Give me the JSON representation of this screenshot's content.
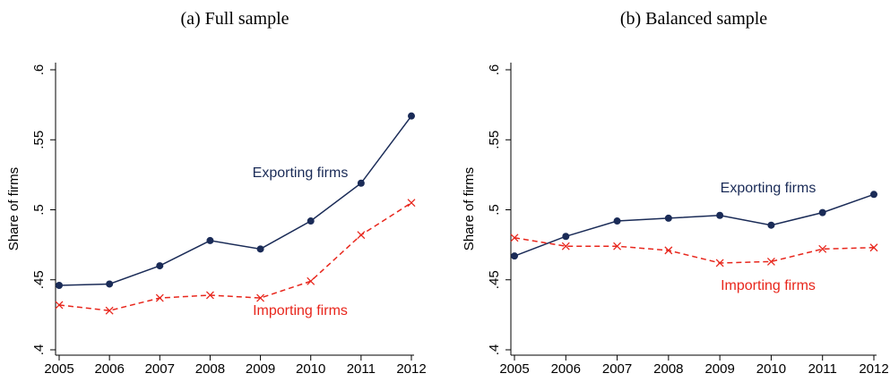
{
  "chart_data": [
    {
      "type": "line",
      "title": "(a) Full sample",
      "y_label": "Share of firms",
      "x": [
        2005,
        2006,
        2007,
        2008,
        2009,
        2010,
        2011,
        2012
      ],
      "xlim": [
        2005,
        2012
      ],
      "xticks": [
        2005,
        2006,
        2007,
        2008,
        2009,
        2010,
        2011,
        2012
      ],
      "ylim": [
        0.4,
        0.6
      ],
      "yticks": [
        {
          "value": 0.4,
          "label": ".4"
        },
        {
          "value": 0.45,
          "label": ".45"
        },
        {
          "value": 0.5,
          "label": ".5"
        },
        {
          "value": 0.55,
          "label": ".55"
        },
        {
          "value": 0.6,
          "label": ".6"
        }
      ],
      "series": [
        {
          "name": "Exporting firms",
          "color": "#1a2b57",
          "marker": "circle",
          "dash": false,
          "values": [
            0.446,
            0.447,
            0.46,
            0.478,
            0.472,
            0.492,
            0.519,
            0.567
          ]
        },
        {
          "name": "Importing firms",
          "color": "#e8261c",
          "marker": "x",
          "dash": true,
          "values": [
            0.432,
            0.428,
            0.437,
            0.439,
            0.437,
            0.449,
            0.482,
            0.505
          ]
        }
      ]
    },
    {
      "type": "line",
      "title": "(b) Balanced sample",
      "y_label": "Share of firms",
      "x": [
        2005,
        2006,
        2007,
        2008,
        2009,
        2010,
        2011,
        2012
      ],
      "xlim": [
        2005,
        2012
      ],
      "xticks": [
        2005,
        2006,
        2007,
        2008,
        2009,
        2010,
        2011,
        2012
      ],
      "ylim": [
        0.4,
        0.6
      ],
      "yticks": [
        {
          "value": 0.4,
          "label": ".4"
        },
        {
          "value": 0.45,
          "label": ".45"
        },
        {
          "value": 0.5,
          "label": ".5"
        },
        {
          "value": 0.55,
          "label": ".55"
        },
        {
          "value": 0.6,
          "label": ".6"
        }
      ],
      "series": [
        {
          "name": "Exporting firms",
          "color": "#1a2b57",
          "marker": "circle",
          "dash": false,
          "values": [
            0.467,
            0.481,
            0.492,
            0.494,
            0.496,
            0.489,
            0.498,
            0.511
          ]
        },
        {
          "name": "Importing firms",
          "color": "#e8261c",
          "marker": "x",
          "dash": true,
          "values": [
            0.48,
            0.474,
            0.474,
            0.471,
            0.462,
            0.463,
            0.472,
            0.473
          ]
        }
      ]
    }
  ]
}
